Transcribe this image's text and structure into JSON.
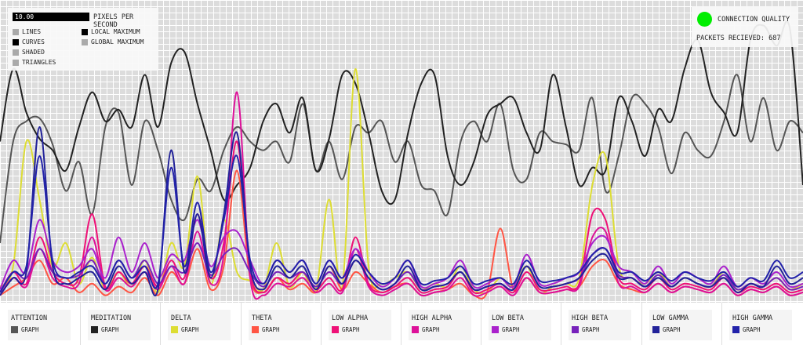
{
  "controls": {
    "pixels_per_second_value": "10.00",
    "pixels_per_second_label": "PIXELS PER SECOND",
    "render_modes": [
      {
        "label": "LINES",
        "selected": false
      },
      {
        "label": "CURVES",
        "selected": true
      },
      {
        "label": "SHADED",
        "selected": false
      },
      {
        "label": "TRIANGLES",
        "selected": false
      }
    ],
    "scale_modes": [
      {
        "label": "LOCAL MAXIMUM",
        "selected": true
      },
      {
        "label": "GLOBAL MAXIMUM",
        "selected": false
      }
    ]
  },
  "status": {
    "connection_label": "CONNECTION QUALITY",
    "connection_color": "#00ee00",
    "packets_label": "PACKETS RECIEVED: 687"
  },
  "channels": [
    {
      "name": "ATTENTION",
      "graph_label": "GRAPH",
      "color": "#555555"
    },
    {
      "name": "MEDITATION",
      "graph_label": "GRAPH",
      "color": "#222222"
    },
    {
      "name": "DELTA",
      "graph_label": "GRAPH",
      "color": "#dddd33"
    },
    {
      "name": "THETA",
      "graph_label": "GRAPH",
      "color": "#ff5544"
    },
    {
      "name": "LOW ALPHA",
      "graph_label": "GRAPH",
      "color": "#ee1177"
    },
    {
      "name": "HIGH ALPHA",
      "graph_label": "GRAPH",
      "color": "#dd1199"
    },
    {
      "name": "LOW BETA",
      "graph_label": "GRAPH",
      "color": "#aa22cc"
    },
    {
      "name": "HIGH BETA",
      "graph_label": "GRAPH",
      "color": "#7722bb"
    },
    {
      "name": "LOW GAMMA",
      "graph_label": "GRAPH",
      "color": "#222299"
    },
    {
      "name": "HIGH GAMMA",
      "graph_label": "GRAPH",
      "color": "#2222aa"
    }
  ],
  "chart_data": {
    "type": "line",
    "series": [
      {
        "name": "ATTENTION",
        "values": [
          20,
          55,
          62,
          63,
          54,
          38,
          48,
          30,
          60,
          65,
          40,
          62,
          52,
          35,
          28,
          42,
          38,
          52,
          60,
          55,
          52,
          55,
          48,
          68,
          45,
          55,
          42,
          60,
          58,
          62,
          48,
          55,
          40,
          38,
          30,
          55,
          62,
          55,
          68,
          45,
          42,
          58,
          55,
          54,
          52,
          70,
          38,
          50,
          70,
          68,
          60,
          44,
          58,
          52,
          50,
          62,
          78,
          55,
          70,
          52,
          62,
          58
        ]
      },
      {
        "name": "MEDITATION",
        "values": [
          55,
          80,
          65,
          56,
          52,
          45,
          60,
          72,
          62,
          66,
          60,
          78,
          60,
          82,
          86,
          68,
          52,
          35,
          40,
          46,
          62,
          68,
          58,
          70,
          45,
          56,
          78,
          75,
          58,
          38,
          35,
          58,
          75,
          78,
          50,
          40,
          48,
          64,
          68,
          70,
          58,
          52,
          78,
          60,
          40,
          46,
          45,
          70,
          62,
          50,
          66,
          62,
          80,
          90,
          72,
          65,
          58,
          90,
          95,
          88,
          94,
          40
        ]
      },
      {
        "name": "DELTA",
        "values": [
          5,
          12,
          55,
          35,
          12,
          20,
          6,
          15,
          4,
          10,
          5,
          14,
          3,
          20,
          12,
          43,
          6,
          28,
          10,
          7,
          4,
          20,
          5,
          10,
          4,
          35,
          5,
          80,
          12,
          6,
          8,
          10,
          4,
          6,
          5,
          12,
          4,
          3,
          8,
          5,
          12,
          3,
          5,
          6,
          8,
          40,
          50,
          12,
          8,
          6,
          10,
          5,
          8,
          6,
          5,
          10,
          4,
          6,
          5,
          8,
          4,
          6
        ]
      },
      {
        "name": "THETA",
        "values": [
          2,
          5,
          8,
          14,
          6,
          8,
          3,
          6,
          2,
          5,
          3,
          8,
          2,
          10,
          6,
          18,
          4,
          12,
          45,
          8,
          3,
          8,
          4,
          6,
          3,
          12,
          4,
          10,
          6,
          3,
          5,
          6,
          2,
          3,
          4,
          6,
          2,
          3,
          25,
          4,
          8,
          3,
          3,
          4,
          5,
          12,
          14,
          6,
          4,
          3,
          6,
          3,
          5,
          4,
          3,
          6,
          2,
          4,
          3,
          5,
          2,
          3
        ]
      },
      {
        "name": "LOW ALPHA",
        "values": [
          3,
          10,
          6,
          22,
          10,
          6,
          8,
          30,
          5,
          10,
          6,
          12,
          5,
          14,
          8,
          30,
          8,
          20,
          55,
          10,
          3,
          8,
          6,
          10,
          4,
          8,
          4,
          22,
          6,
          3,
          5,
          8,
          3,
          4,
          5,
          10,
          3,
          4,
          6,
          3,
          10,
          4,
          4,
          5,
          6,
          30,
          28,
          8,
          6,
          4,
          8,
          4,
          6,
          5,
          4,
          8,
          3,
          5,
          4,
          6,
          3,
          4
        ]
      },
      {
        "name": "HIGH ALPHA",
        "values": [
          2,
          8,
          5,
          18,
          8,
          5,
          6,
          22,
          4,
          8,
          5,
          10,
          4,
          12,
          6,
          24,
          6,
          16,
          72,
          8,
          2,
          6,
          5,
          8,
          3,
          6,
          3,
          18,
          5,
          2,
          4,
          6,
          2,
          3,
          4,
          8,
          2,
          3,
          5,
          2,
          8,
          3,
          3,
          4,
          5,
          22,
          24,
          6,
          5,
          3,
          6,
          3,
          5,
          4,
          3,
          6,
          2,
          4,
          3,
          5,
          2,
          3
        ]
      },
      {
        "name": "LOW BETA",
        "values": [
          4,
          14,
          10,
          28,
          14,
          10,
          12,
          18,
          8,
          22,
          10,
          20,
          8,
          16,
          14,
          28,
          12,
          22,
          24,
          14,
          6,
          14,
          10,
          14,
          6,
          14,
          8,
          18,
          10,
          5,
          8,
          14,
          5,
          6,
          8,
          14,
          5,
          6,
          8,
          5,
          16,
          6,
          6,
          8,
          10,
          20,
          22,
          12,
          10,
          6,
          12,
          6,
          10,
          8,
          6,
          12,
          5,
          8,
          6,
          10,
          5,
          6
        ]
      },
      {
        "name": "HIGH BETA",
        "values": [
          3,
          10,
          8,
          18,
          10,
          8,
          9,
          14,
          6,
          14,
          8,
          14,
          6,
          12,
          10,
          20,
          9,
          16,
          18,
          10,
          5,
          10,
          8,
          10,
          5,
          10,
          6,
          14,
          8,
          4,
          6,
          10,
          4,
          5,
          6,
          10,
          4,
          5,
          6,
          4,
          12,
          5,
          5,
          6,
          8,
          16,
          18,
          9,
          8,
          5,
          9,
          5,
          8,
          6,
          5,
          9,
          4,
          6,
          5,
          8,
          4,
          5
        ]
      },
      {
        "name": "LOW GAMMA",
        "values": [
          2,
          8,
          10,
          60,
          12,
          6,
          8,
          10,
          4,
          12,
          6,
          10,
          4,
          52,
          10,
          30,
          8,
          30,
          58,
          12,
          4,
          12,
          8,
          12,
          4,
          12,
          6,
          14,
          8,
          4,
          6,
          12,
          4,
          5,
          6,
          10,
          4,
          5,
          6,
          4,
          12,
          5,
          5,
          6,
          8,
          14,
          16,
          8,
          8,
          5,
          8,
          5,
          8,
          6,
          5,
          8,
          3,
          6,
          5,
          12,
          6,
          8
        ]
      },
      {
        "name": "HIGH GAMMA",
        "values": [
          3,
          10,
          12,
          50,
          14,
          8,
          10,
          12,
          6,
          14,
          8,
          12,
          6,
          46,
          12,
          34,
          10,
          28,
          50,
          14,
          6,
          14,
          10,
          14,
          6,
          14,
          8,
          16,
          10,
          6,
          8,
          14,
          6,
          7,
          8,
          12,
          6,
          7,
          8,
          6,
          14,
          7,
          7,
          8,
          10,
          16,
          18,
          10,
          10,
          7,
          10,
          7,
          10,
          8,
          7,
          10,
          5,
          8,
          7,
          14,
          8,
          10
        ]
      }
    ],
    "ylim": [
      0,
      100
    ],
    "grid": true
  }
}
